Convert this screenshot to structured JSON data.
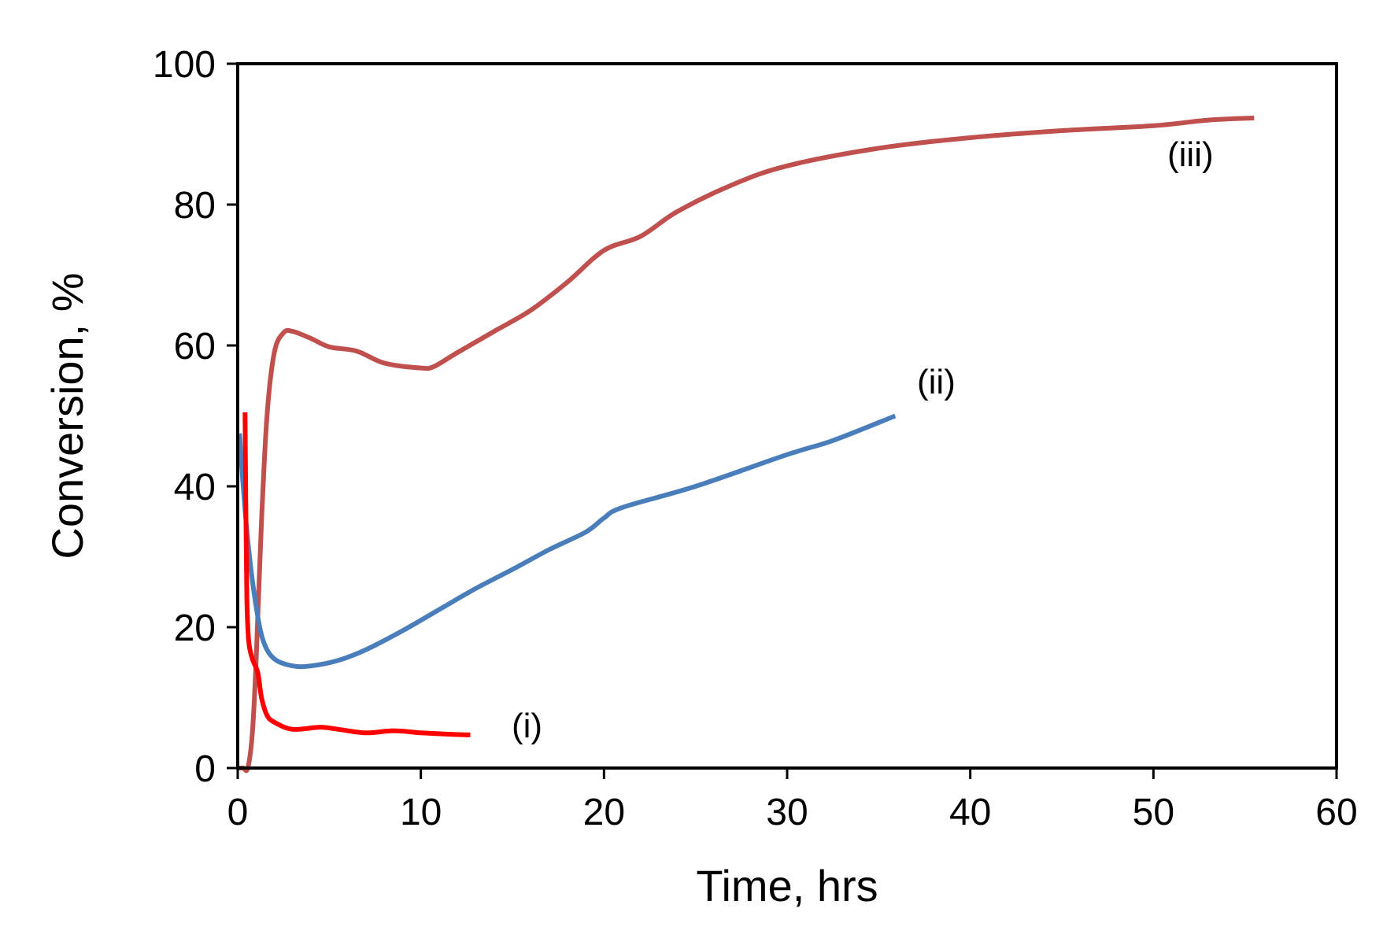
{
  "chart_data": {
    "type": "line",
    "title": "",
    "xlabel": "Time, hrs",
    "ylabel": "Conversion, %",
    "xlim": [
      0,
      60
    ],
    "ylim": [
      0,
      100
    ],
    "xticks": [
      0,
      10,
      20,
      30,
      40,
      50,
      60
    ],
    "yticks": [
      0,
      20,
      40,
      60,
      80,
      100
    ],
    "grid": false,
    "series": [
      {
        "name": "(i)",
        "color": "#ff0000",
        "x": [
          0.4,
          0.45,
          0.5,
          0.6,
          0.8,
          1.1,
          1.3,
          1.6,
          2.0,
          3.0,
          4.5,
          5.5,
          7.0,
          8.5,
          10.0,
          11.5,
          12.7
        ],
        "y": [
          50.5,
          35.0,
          24.0,
          18.0,
          15.5,
          13.5,
          10.0,
          7.5,
          6.5,
          5.5,
          5.8,
          5.5,
          5.0,
          5.3,
          5.0,
          4.8,
          4.7
        ]
      },
      {
        "name": "(ii)",
        "color": "#4a7ebb",
        "x": [
          0.1,
          0.3,
          0.6,
          1.0,
          1.4,
          2.0,
          3.0,
          4.0,
          5.5,
          7.0,
          9.0,
          11.0,
          13.0,
          15.0,
          17.0,
          19.0,
          20.0,
          21.0,
          25.0,
          30.0,
          32.5,
          35.9
        ],
        "y": [
          47.5,
          40.0,
          31.0,
          23.0,
          18.0,
          15.5,
          14.5,
          14.5,
          15.3,
          16.8,
          19.5,
          22.5,
          25.5,
          28.2,
          31.0,
          33.5,
          35.5,
          37.0,
          40.0,
          44.5,
          46.5,
          50.0
        ]
      },
      {
        "name": "(iii)",
        "color": "#c0504d",
        "x": [
          0.0,
          0.3,
          0.55,
          0.8,
          1.0,
          1.3,
          1.6,
          2.0,
          2.5,
          3.0,
          4.0,
          5.0,
          6.5,
          8.0,
          10.0,
          10.7,
          12.0,
          14.0,
          16.0,
          18.0,
          20.0,
          22.0,
          24.0,
          27.0,
          30.0,
          35.0,
          40.0,
          45.0,
          50.0,
          53.0,
          55.5
        ],
        "y": [
          0.0,
          0.0,
          0.0,
          5.0,
          15.0,
          35.0,
          50.0,
          59.0,
          61.8,
          62.0,
          61.0,
          59.8,
          59.2,
          57.5,
          56.8,
          57.0,
          59.0,
          62.0,
          65.0,
          69.0,
          73.5,
          75.5,
          79.0,
          82.8,
          85.5,
          88.0,
          89.5,
          90.5,
          91.2,
          92.0,
          92.3
        ]
      }
    ]
  }
}
